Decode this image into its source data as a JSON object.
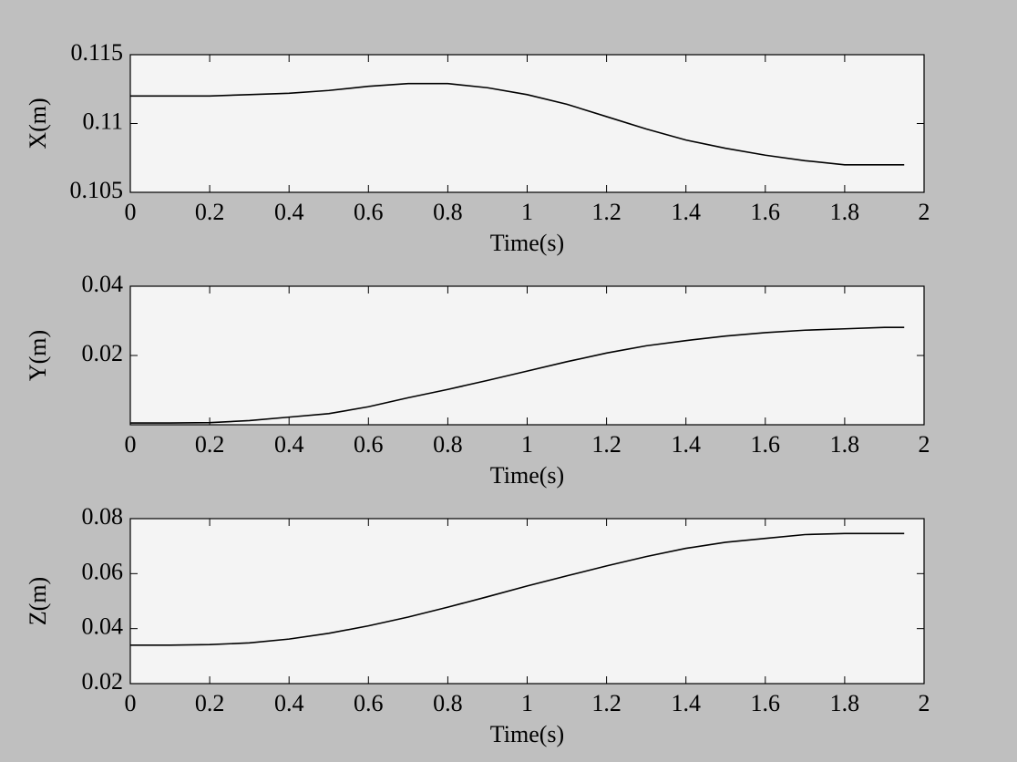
{
  "chart_data": [
    {
      "type": "line",
      "y_label": "X(m)",
      "x_label": "Time(s)",
      "color": "#000000",
      "x": [
        0,
        0.1,
        0.2,
        0.3,
        0.4,
        0.5,
        0.6,
        0.7,
        0.8,
        0.9,
        1.0,
        1.1,
        1.2,
        1.3,
        1.4,
        1.5,
        1.6,
        1.7,
        1.8,
        1.9,
        1.95
      ],
      "values": [
        0.112,
        0.112,
        0.112,
        0.1121,
        0.1122,
        0.1124,
        0.1127,
        0.1129,
        0.1129,
        0.1126,
        0.1121,
        0.1114,
        0.1105,
        0.1096,
        0.1088,
        0.1082,
        0.1077,
        0.1073,
        0.107,
        0.107,
        0.107
      ],
      "xlim": [
        0,
        2
      ],
      "xticks": [
        0,
        0.2,
        0.4,
        0.6,
        0.8,
        1,
        1.2,
        1.4,
        1.6,
        1.8,
        2
      ],
      "ylim": [
        0.105,
        0.115
      ],
      "yticks": [
        0.105,
        0.11,
        0.115
      ]
    },
    {
      "type": "line",
      "y_label": "Y(m)",
      "x_label": "Time(s)",
      "color": "#000000",
      "x": [
        0,
        0.1,
        0.2,
        0.3,
        0.4,
        0.5,
        0.6,
        0.7,
        0.8,
        0.9,
        1.0,
        1.1,
        1.2,
        1.3,
        1.4,
        1.5,
        1.6,
        1.7,
        1.8,
        1.9,
        1.95
      ],
      "values": [
        0.0005,
        0.0005,
        0.0006,
        0.0012,
        0.0022,
        0.0032,
        0.0052,
        0.0078,
        0.0102,
        0.0128,
        0.0155,
        0.0182,
        0.0207,
        0.0228,
        0.0243,
        0.0256,
        0.0266,
        0.0273,
        0.0277,
        0.0281,
        0.0281
      ],
      "xlim": [
        0,
        2
      ],
      "xticks": [
        0,
        0.2,
        0.4,
        0.6,
        0.8,
        1,
        1.2,
        1.4,
        1.6,
        1.8,
        2
      ],
      "ylim": [
        0,
        0.04
      ],
      "yticks": [
        0.02,
        0.04
      ]
    },
    {
      "type": "line",
      "y_label": "Z(m)",
      "x_label": "Time(s)",
      "color": "#000000",
      "x": [
        0,
        0.1,
        0.2,
        0.3,
        0.4,
        0.5,
        0.6,
        0.7,
        0.8,
        0.9,
        1.0,
        1.1,
        1.2,
        1.3,
        1.4,
        1.5,
        1.6,
        1.7,
        1.8,
        1.9,
        1.95
      ],
      "values": [
        0.034,
        0.034,
        0.0342,
        0.0348,
        0.0362,
        0.0383,
        0.041,
        0.0442,
        0.0478,
        0.0516,
        0.0555,
        0.0592,
        0.0628,
        0.0662,
        0.0692,
        0.0714,
        0.0728,
        0.0742,
        0.0746,
        0.0746,
        0.0746
      ],
      "xlim": [
        0,
        2
      ],
      "xticks": [
        0,
        0.2,
        0.4,
        0.6,
        0.8,
        1,
        1.2,
        1.4,
        1.6,
        1.8,
        2
      ],
      "ylim": [
        0.02,
        0.08
      ],
      "yticks": [
        0.02,
        0.04,
        0.06,
        0.08
      ]
    }
  ]
}
